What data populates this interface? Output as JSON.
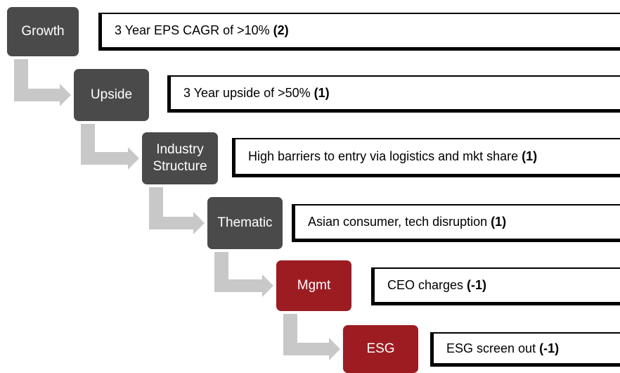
{
  "steps": [
    {
      "label": "Growth",
      "criterion": "3 Year EPS CAGR of >10%",
      "score": "(2)",
      "color": "#4a4a4a"
    },
    {
      "label": "Upside",
      "criterion": "3 Year upside of >50%",
      "score": "(1)",
      "color": "#4a4a4a"
    },
    {
      "label": "Industry Structure",
      "criterion": "High barriers to entry via logistics and mkt share",
      "score": "(1)",
      "color": "#4a4a4a"
    },
    {
      "label": "Thematic",
      "criterion": "Asian consumer, tech disruption",
      "score": "(1)",
      "color": "#4a4a4a"
    },
    {
      "label": "Mgmt",
      "criterion": "CEO charges",
      "score": "(-1)",
      "color": "#9c1c22"
    },
    {
      "label": "ESG",
      "criterion": "ESG screen out",
      "score": "(-1)",
      "color": "#9c1c22"
    }
  ]
}
